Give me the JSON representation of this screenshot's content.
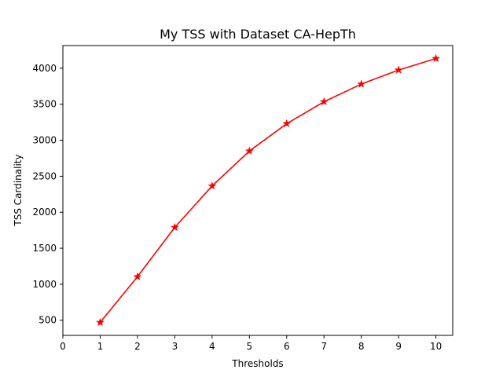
{
  "chart_data": {
    "type": "line",
    "title": "My TSS with Dataset CA-HepTh",
    "xlabel": "Thresholds",
    "ylabel": "TSS Cardinality",
    "x": [
      1,
      2,
      3,
      4,
      5,
      6,
      7,
      8,
      9,
      10
    ],
    "series": [
      {
        "values": [
          470,
          1105,
          1790,
          2365,
          2850,
          3230,
          3535,
          3780,
          3975,
          4135
        ],
        "color": "#ff0000",
        "marker": "star"
      }
    ],
    "xlim": [
      0,
      10.45
    ],
    "ylim": [
      290,
      4315
    ],
    "xticks": [
      0,
      1,
      2,
      3,
      4,
      5,
      6,
      7,
      8,
      9,
      10
    ],
    "yticks": [
      500,
      1000,
      1500,
      2000,
      2500,
      3000,
      3500,
      4000
    ],
    "grid": false,
    "legend": false
  }
}
